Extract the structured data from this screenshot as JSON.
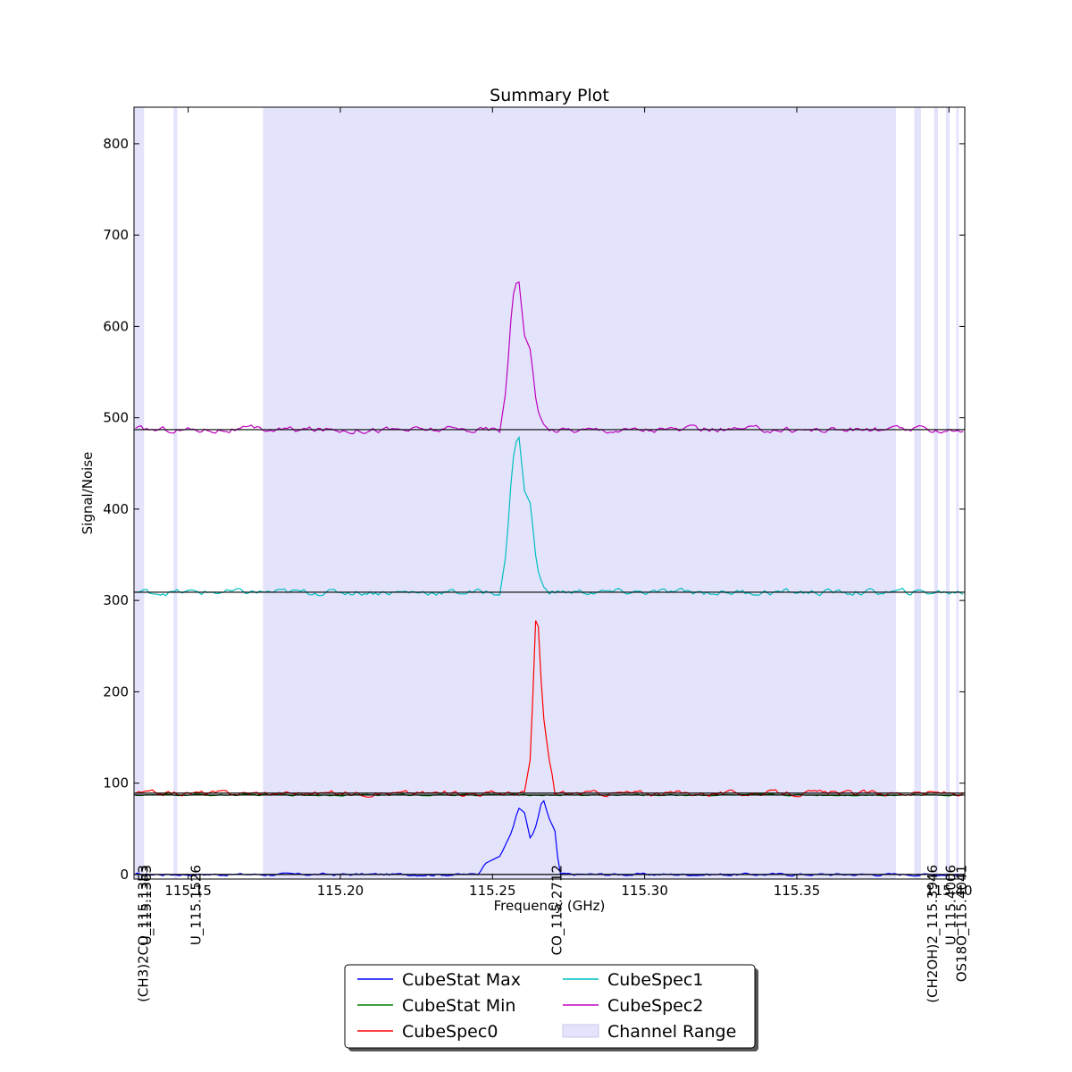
{
  "chart_data": {
    "type": "line",
    "title": "Summary Plot",
    "xlabel": "Frequency (GHz)",
    "ylabel": "Signal/Noise",
    "xlim": [
      115.1322,
      115.4052
    ],
    "ylim": [
      -5,
      840
    ],
    "x_ticks": [
      {
        "value": 115.15,
        "label": "115.15"
      },
      {
        "value": 115.2,
        "label": "115.20"
      },
      {
        "value": 115.25,
        "label": "115.25"
      },
      {
        "value": 115.3,
        "label": "115.30"
      },
      {
        "value": 115.35,
        "label": "115.35"
      },
      {
        "value": 115.4,
        "label": "115.40"
      }
    ],
    "y_ticks": [
      {
        "value": 0,
        "label": "0"
      },
      {
        "value": 100,
        "label": "100"
      },
      {
        "value": 200,
        "label": "200"
      },
      {
        "value": 300,
        "label": "300"
      },
      {
        "value": 400,
        "label": "400"
      },
      {
        "value": 500,
        "label": "500"
      },
      {
        "value": 600,
        "label": "600"
      },
      {
        "value": 700,
        "label": "700"
      },
      {
        "value": 800,
        "label": "800"
      }
    ],
    "channel_ranges": [
      [
        115.1324,
        115.1355
      ],
      [
        115.1452,
        115.1464
      ],
      [
        115.1746,
        115.3826
      ],
      [
        115.3886,
        115.3908
      ],
      [
        115.3951,
        115.3964
      ],
      [
        115.399,
        115.4002
      ],
      [
        115.4024,
        115.4032
      ]
    ],
    "line_markers": [
      {
        "x": 115.1353,
        "label": "(CH3)2CO_115.1353"
      },
      {
        "x": 115.1363,
        "label": "U_115.1363"
      },
      {
        "x": 115.1526,
        "label": "U_115.1526"
      },
      {
        "x": 115.2712,
        "label": "CO_115.2712"
      },
      {
        "x": 115.3946,
        "label": "(CH2OH)2_115.3946"
      },
      {
        "x": 115.4006,
        "label": "U_115.4006"
      },
      {
        "x": 115.4041,
        "label": "OS18O_115.4041"
      }
    ],
    "series": [
      {
        "name": "CubeStat Max",
        "color": "#0000ff",
        "baseline": 0,
        "noise": 1.5,
        "peak_x": [
          115.2455,
          115.2475,
          115.2525,
          115.2565,
          115.2585,
          115.2605,
          115.2625,
          115.2645,
          115.2665,
          115.2685,
          115.2705,
          115.272
        ],
        "peak_y": [
          0,
          12,
          20,
          48,
          73,
          68,
          38,
          55,
          85,
          62,
          48,
          0
        ]
      },
      {
        "name": "CubeStat Min",
        "color": "#008000",
        "baseline": 87,
        "noise": 0.8,
        "peak_x": [],
        "peak_y": []
      },
      {
        "name": "CubeSpec0",
        "color": "#ff0000",
        "baseline": 89,
        "noise": 3,
        "peak_x": [
          115.2605,
          115.2625,
          115.2645,
          115.2665,
          115.2685,
          115.2705
        ],
        "peak_y": [
          90,
          128,
          308,
          180,
          128,
          94
        ]
      },
      {
        "name": "CubeSpec1",
        "color": "#00bfbf",
        "baseline": 309,
        "noise": 3.5,
        "peak_x": [
          115.2525,
          115.2545,
          115.2565,
          115.2585,
          115.2605,
          115.2625,
          115.2645,
          115.2665,
          115.2685
        ],
        "peak_y": [
          309,
          352,
          450,
          486,
          420,
          406,
          338,
          316,
          309
        ]
      },
      {
        "name": "CubeSpec2",
        "color": "#bf00bf",
        "baseline": 487,
        "noise": 3.5,
        "peak_x": [
          115.2525,
          115.2545,
          115.2565,
          115.2585,
          115.2605,
          115.2625,
          115.2645,
          115.2665,
          115.2685
        ],
        "peak_y": [
          487,
          532,
          630,
          656,
          590,
          574,
          512,
          494,
          487
        ]
      }
    ],
    "baselines": [
      0,
      87,
      89,
      309,
      487
    ],
    "legend": {
      "position": "bottom-center",
      "entries": [
        {
          "label": "CubeStat Max",
          "color": "#0000ff",
          "kind": "line"
        },
        {
          "label": "CubeSpec1",
          "color": "#00bfbf",
          "kind": "line"
        },
        {
          "label": "CubeStat Min",
          "color": "#008000",
          "kind": "line"
        },
        {
          "label": "CubeSpec2",
          "color": "#bf00bf",
          "kind": "line"
        },
        {
          "label": "CubeSpec0",
          "color": "#ff0000",
          "kind": "line"
        },
        {
          "label": "Channel Range",
          "color": "#e3e3fb",
          "kind": "patch"
        }
      ]
    }
  }
}
